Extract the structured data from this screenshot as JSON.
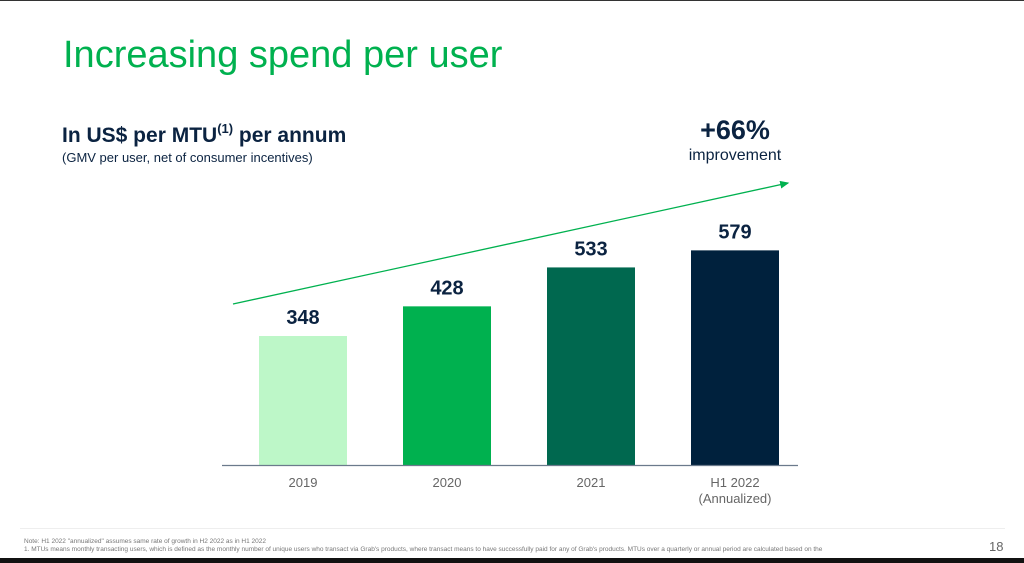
{
  "title": "Increasing spend per user",
  "subtitle": {
    "main": "In US$ per MTU",
    "sup": "(1)",
    "tail": " per annum",
    "note": "(GMV per user, net of consumer incentives)"
  },
  "growth": {
    "value": "+66%",
    "label": "improvement"
  },
  "chart_data": {
    "type": "bar",
    "categories": [
      "2019",
      "2020",
      "2021",
      "H1 2022\n(Annualized)"
    ],
    "category_lines": [
      [
        "2019"
      ],
      [
        "2020"
      ],
      [
        "2021"
      ],
      [
        "H1 2022",
        "(Annualized)"
      ]
    ],
    "values": [
      348,
      428,
      533,
      579
    ],
    "data_labels": [
      "348",
      "428",
      "533",
      "579"
    ],
    "colors": [
      "#bdf7c8",
      "#00b14f",
      "#00684f",
      "#00213d"
    ],
    "arrow_color": "#00b14f",
    "ylim": [
      0,
      600
    ],
    "grid": false,
    "title": "",
    "xlabel": "",
    "ylabel": ""
  },
  "footnotes": {
    "note": "Note: H1 2022 \"annualized\" assumes same rate of growth in H2 2022 as in H1 2022",
    "fn1": "1. MTUs means monthly transacting users, which is defined as the monthly number of unique users who transact via Grab's products, where transact means to have successfully paid for any of Grab's products. MTUs over a quarterly or annual period are calculated based on the"
  },
  "page_number": "18"
}
